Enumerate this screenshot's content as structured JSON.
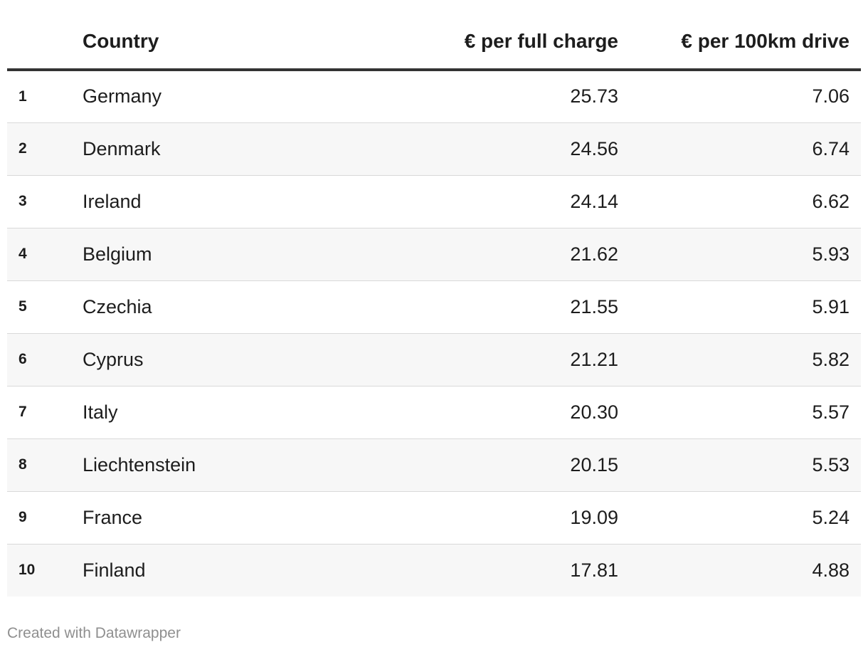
{
  "chart_data": {
    "type": "table",
    "columns": [
      "",
      "Country",
      "€ per full charge",
      "€ per 100km drive"
    ],
    "rows": [
      {
        "rank": "1",
        "country": "Germany",
        "charge": "25.73",
        "drive": "7.06"
      },
      {
        "rank": "2",
        "country": "Denmark",
        "charge": "24.56",
        "drive": "6.74"
      },
      {
        "rank": "3",
        "country": "Ireland",
        "charge": "24.14",
        "drive": "6.62"
      },
      {
        "rank": "4",
        "country": "Belgium",
        "charge": "21.62",
        "drive": "5.93"
      },
      {
        "rank": "5",
        "country": "Czechia",
        "charge": "21.55",
        "drive": "5.91"
      },
      {
        "rank": "6",
        "country": "Cyprus",
        "charge": "21.21",
        "drive": "5.82"
      },
      {
        "rank": "7",
        "country": "Italy",
        "charge": "20.30",
        "drive": "5.57"
      },
      {
        "rank": "8",
        "country": "Liechtenstein",
        "charge": "20.15",
        "drive": "5.53"
      },
      {
        "rank": "9",
        "country": "France",
        "charge": "19.09",
        "drive": "5.24"
      },
      {
        "rank": "10",
        "country": "Finland",
        "charge": "17.81",
        "drive": "4.88"
      }
    ]
  },
  "footer": {
    "credit": "Created with Datawrapper"
  },
  "colors": {
    "text": "#1d1d1d",
    "header_rule": "#333333",
    "row_stripe": "#f7f7f7",
    "row_divider": "#d9d9d9",
    "footer_text": "#8f8f8f"
  }
}
